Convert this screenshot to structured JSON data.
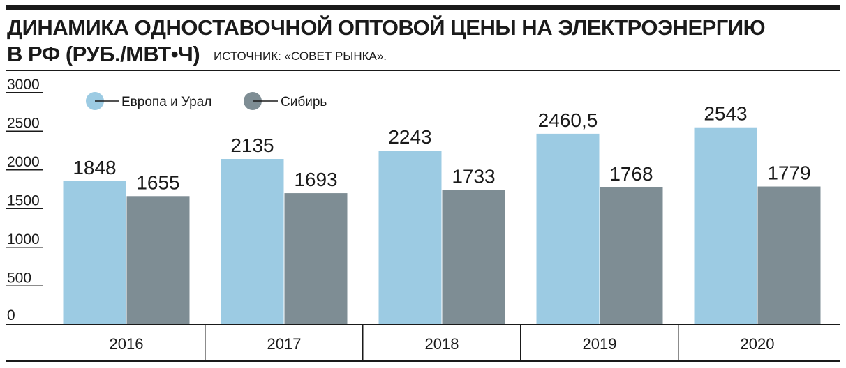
{
  "header": {
    "title_line1": "ДИНАМИКА ОДНОСТАВОЧНОЙ ОПТОВОЙ ЦЕНЫ НА ЭЛЕКТРОЭНЕРГИЮ",
    "title_line2": "В РФ (РУБ./МВТ•Ч)",
    "source": "ИСТОЧНИК: «СОВЕТ РЫНКА»."
  },
  "chart_data": {
    "type": "bar",
    "categories": [
      "2016",
      "2017",
      "2018",
      "2019",
      "2020"
    ],
    "series": [
      {
        "name": "Европа и Урал",
        "values": [
          1848,
          2135,
          2243,
          2460.5,
          2543
        ],
        "labels": [
          "1848",
          "2135",
          "2243",
          "2460,5",
          "2543"
        ],
        "color": "#9ccbe3"
      },
      {
        "name": "Сибирь",
        "values": [
          1655,
          1693,
          1733,
          1768,
          1779
        ],
        "labels": [
          "1655",
          "1693",
          "1733",
          "1768",
          "1779"
        ],
        "color": "#7e8d94"
      }
    ],
    "yticks": [
      "0",
      "500",
      "1000",
      "1500",
      "2000",
      "2500",
      "3000"
    ],
    "ylim": [
      0,
      3000
    ],
    "legend_position": "top-left",
    "grid": false
  }
}
